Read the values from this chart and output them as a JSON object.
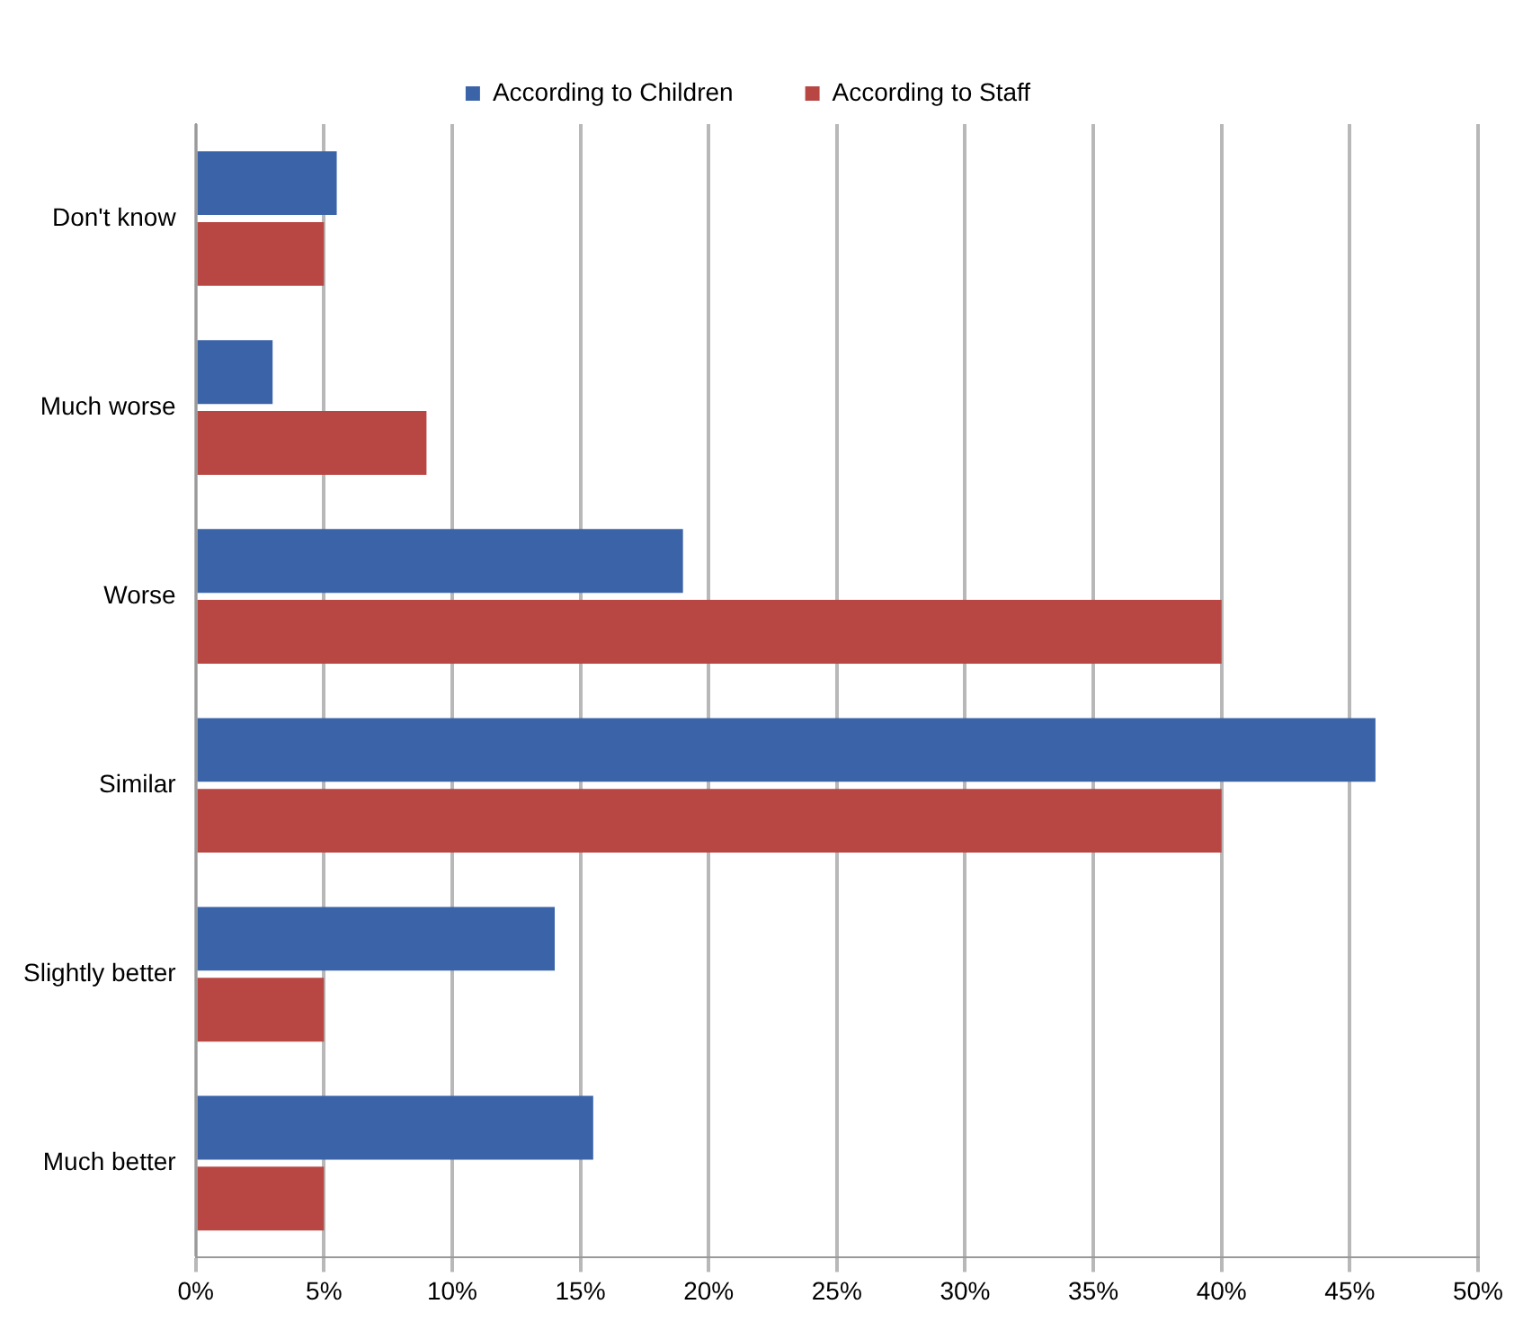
{
  "chart_data": {
    "type": "bar",
    "orientation": "horizontal",
    "categories": [
      "Don't know",
      "Much worse",
      "Worse",
      "Similar",
      "Slightly better",
      "Much better"
    ],
    "series": [
      {
        "name": "According to Children",
        "color": "#3b64a8",
        "values": [
          5.5,
          3,
          19,
          46,
          14,
          15.5
        ]
      },
      {
        "name": "According to Staff",
        "color": "#b84744",
        "values": [
          5,
          9,
          40,
          40,
          5,
          5
        ]
      }
    ],
    "xlim": [
      0,
      50
    ],
    "xticks": [
      {
        "value": 0,
        "label": "0%"
      },
      {
        "value": 5,
        "label": "5%"
      },
      {
        "value": 10,
        "label": "10%"
      },
      {
        "value": 15,
        "label": "15%"
      },
      {
        "value": 20,
        "label": "20%"
      },
      {
        "value": 25,
        "label": "25%"
      },
      {
        "value": 30,
        "label": "30%"
      },
      {
        "value": 35,
        "label": "35%"
      },
      {
        "value": 40,
        "label": "40%"
      },
      {
        "value": 45,
        "label": "45%"
      },
      {
        "value": 50,
        "label": "50%"
      }
    ],
    "grid": "x",
    "legend": "top"
  }
}
